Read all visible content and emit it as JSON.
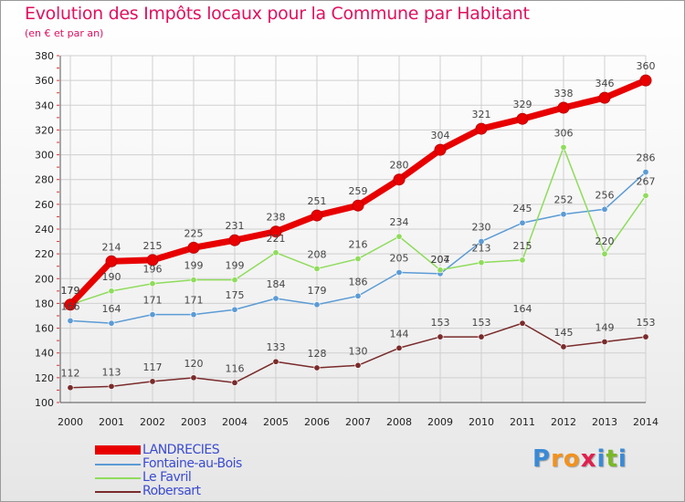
{
  "title": "Evolution des Impôts locaux pour la Commune par Habitant",
  "subtitle": "(en € et par an)",
  "brand": {
    "letters": [
      "P",
      "r",
      "o",
      "x",
      "i",
      "t",
      "i"
    ],
    "colors": [
      "#3a8ad6",
      "#f1921f",
      "#f1921f",
      "#e0204f",
      "#3a8ad6",
      "#7ab828",
      "#3a8ad6"
    ]
  },
  "chart_data": {
    "type": "line",
    "x": [
      "2000",
      "2001",
      "2002",
      "2003",
      "2004",
      "2005",
      "2006",
      "2007",
      "2008",
      "2009",
      "2010",
      "2011",
      "2012",
      "2013",
      "2014"
    ],
    "ylim": [
      100,
      380
    ],
    "yticks": [
      100,
      120,
      140,
      160,
      180,
      200,
      220,
      240,
      260,
      280,
      300,
      320,
      340,
      360,
      380
    ],
    "grid": true,
    "legend": "bottom-left",
    "series": [
      {
        "name": "LANDRECIES",
        "color": "#e80000",
        "values": [
          179,
          214,
          215,
          225,
          231,
          238,
          251,
          259,
          280,
          304,
          321,
          329,
          338,
          346,
          360
        ]
      },
      {
        "name": "Fontaine-au-Bois",
        "color": "#5b9bd5",
        "values": [
          166,
          164,
          171,
          171,
          175,
          184,
          179,
          186,
          205,
          204,
          230,
          245,
          252,
          256,
          286
        ]
      },
      {
        "name": "Le Favril",
        "color": "#8fdc5c",
        "values": [
          179,
          190,
          196,
          199,
          199,
          221,
          208,
          216,
          234,
          207,
          213,
          215,
          306,
          220,
          267
        ]
      },
      {
        "name": "Robersart",
        "color": "#7a2a2a",
        "values": [
          112,
          113,
          117,
          120,
          116,
          133,
          128,
          130,
          144,
          153,
          153,
          164,
          145,
          149,
          153
        ]
      }
    ]
  }
}
